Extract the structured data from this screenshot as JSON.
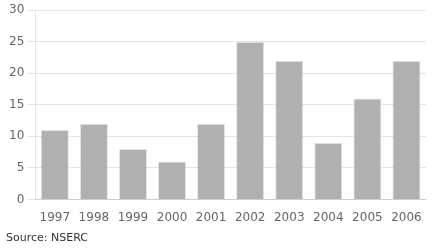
{
  "chart_data": {
    "type": "bar",
    "categories": [
      "1997",
      "1998",
      "1999",
      "2000",
      "2001",
      "2002",
      "2003",
      "2004",
      "2005",
      "2006"
    ],
    "values": [
      11,
      12,
      8,
      6,
      12,
      25,
      22,
      9,
      16,
      22
    ],
    "color": "#b0b0b0",
    "ylim": [
      0,
      30
    ],
    "yticks": [
      0,
      5,
      10,
      15,
      20,
      25,
      30
    ],
    "grid": true,
    "annotation": "Source: NSERC"
  }
}
